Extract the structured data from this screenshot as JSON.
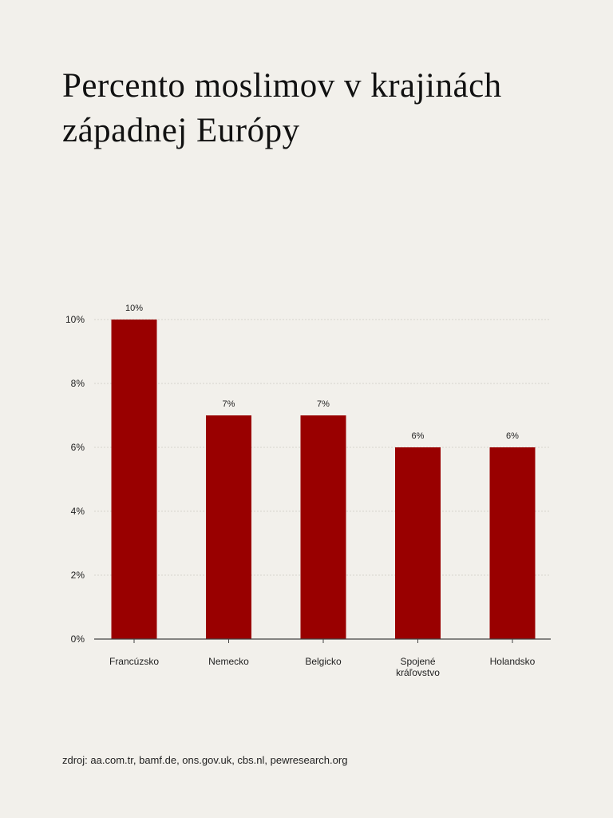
{
  "chart_data": {
    "type": "bar",
    "title_lines": [
      "Percento moslimov v krajinách",
      "západnej Európy"
    ],
    "categories": [
      "Francúzsko",
      "Nemecko",
      "Belgicko",
      "Spojené kráľovstvo",
      "Holandsko"
    ],
    "category_lines": [
      [
        "Francúzsko"
      ],
      [
        "Nemecko"
      ],
      [
        "Belgicko"
      ],
      [
        "Spojené",
        "kráľovstvo"
      ],
      [
        "Holandsko"
      ]
    ],
    "values": [
      10,
      7,
      7,
      6,
      6
    ],
    "data_labels": [
      "10%",
      "7%",
      "7%",
      "6%",
      "6%"
    ],
    "ylim": [
      0,
      10
    ],
    "yticks": [
      0,
      2,
      4,
      6,
      8,
      10
    ],
    "ytick_labels": [
      "0%",
      "2%",
      "4%",
      "6%",
      "8%",
      "10%"
    ],
    "bar_color": "#990000",
    "grid": true,
    "xlabel": "",
    "ylabel": ""
  },
  "source": "zdroj: aa.com.tr, bamf.de, ons.gov.uk, cbs.nl, pewresearch.org"
}
